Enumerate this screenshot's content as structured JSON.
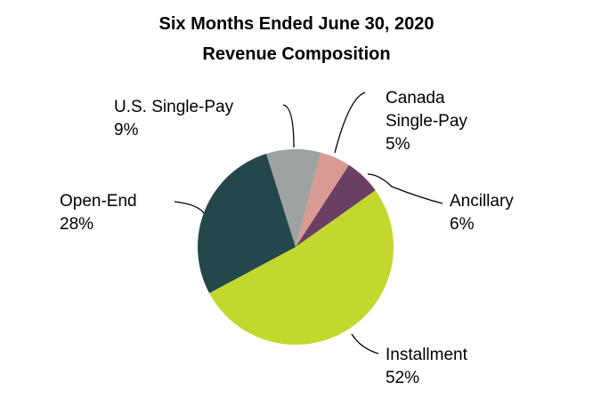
{
  "chart_data": {
    "type": "pie",
    "title": "Six Months Ended June 30, 2020",
    "subtitle": "Revenue Composition",
    "categories": [
      "Canada Single-Pay",
      "Ancillary",
      "Installment",
      "Open-End",
      "U.S. Single-Pay"
    ],
    "values": [
      5,
      6,
      52,
      28,
      9
    ],
    "value_labels": [
      "5%",
      "6%",
      "52%",
      "28%",
      "9%"
    ],
    "colors": [
      "#d99a94",
      "#6b3f63",
      "#c2d82e",
      "#24474b",
      "#9ea3a1"
    ]
  }
}
